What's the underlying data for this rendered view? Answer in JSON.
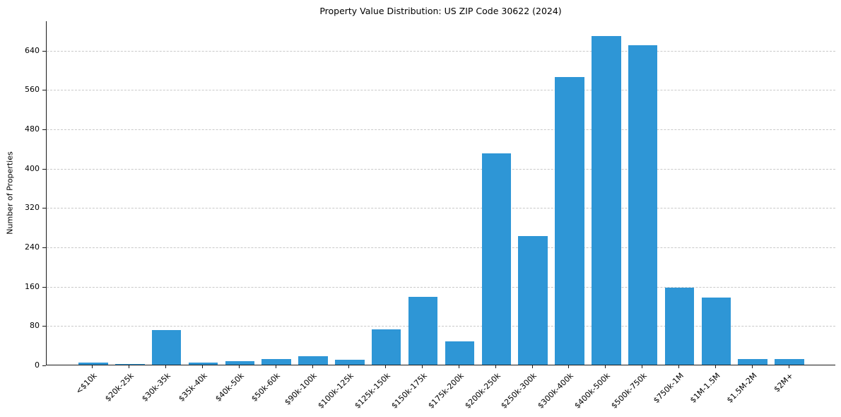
{
  "chart_data": {
    "type": "bar",
    "title": "Property Value Distribution: US ZIP Code 30622 (2024)",
    "xlabel": "",
    "ylabel": "Number of Properties",
    "categories": [
      "<$10k",
      "$20k-25k",
      "$30k-35k",
      "$35k-40k",
      "$40k-50k",
      "$50k-60k",
      "$90k-100k",
      "$100k-125k",
      "$125k-150k",
      "$150k-175k",
      "$175k-200k",
      "$200k-250k",
      "$250k-300k",
      "$300k-400k",
      "$400k-500k",
      "$500k-750k",
      "$750k-1M",
      "$1M-1.5M",
      "$1.5M-2M",
      "$2M+"
    ],
    "values": [
      5,
      2,
      70,
      5,
      7,
      12,
      17,
      10,
      72,
      138,
      47,
      430,
      262,
      585,
      668,
      650,
      157,
      137,
      12,
      12
    ],
    "yticks": [
      0,
      80,
      160,
      240,
      320,
      400,
      480,
      560,
      640
    ],
    "ylim": [
      0,
      700
    ],
    "bar_color": "#2e96d6",
    "grid": "horizontal-dashed",
    "legend": "none"
  }
}
